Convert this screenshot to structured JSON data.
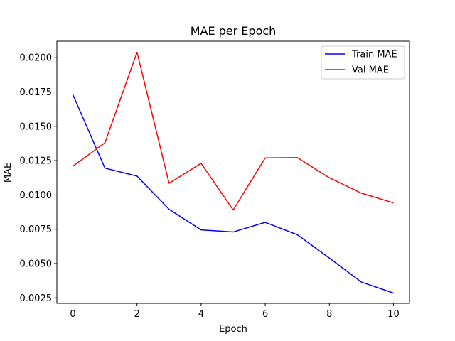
{
  "chart_data": {
    "type": "line",
    "title": "MAE per Epoch",
    "xlabel": "Epoch",
    "ylabel": "MAE",
    "x": [
      0,
      1,
      2,
      3,
      4,
      5,
      6,
      7,
      8,
      9,
      10
    ],
    "xlim": [
      -0.5,
      10.5
    ],
    "ylim": [
      0.0021,
      0.0212
    ],
    "xticks": [
      0,
      2,
      4,
      6,
      8,
      10
    ],
    "xtick_labels": [
      "0",
      "2",
      "4",
      "6",
      "8",
      "10"
    ],
    "yticks": [
      0.0025,
      0.005,
      0.0075,
      0.01,
      0.0125,
      0.015,
      0.0175,
      0.02
    ],
    "ytick_labels": [
      "0.0025",
      "0.0050",
      "0.0075",
      "0.0100",
      "0.0125",
      "0.0150",
      "0.0175",
      "0.0200"
    ],
    "grid": false,
    "legend_position": "top-right",
    "series": [
      {
        "name": "Train MAE",
        "color": "#0000ff",
        "values": [
          0.0173,
          0.01195,
          0.01137,
          0.00895,
          0.00745,
          0.0073,
          0.008,
          0.0071,
          0.0054,
          0.00365,
          0.00285
        ]
      },
      {
        "name": "Val MAE",
        "color": "#ff0000",
        "values": [
          0.0121,
          0.0138,
          0.0204,
          0.01085,
          0.0123,
          0.0089,
          0.0127,
          0.01272,
          0.01125,
          0.01013,
          0.00942
        ]
      }
    ]
  }
}
